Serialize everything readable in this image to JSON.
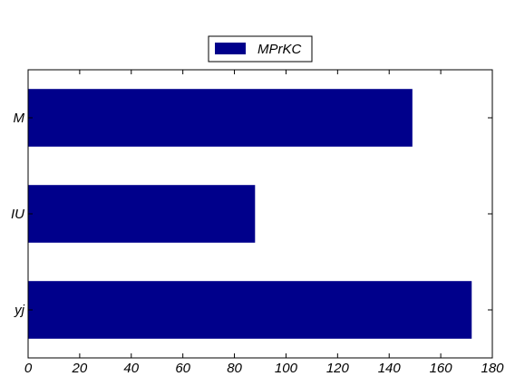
{
  "chart_data": {
    "type": "bar",
    "orientation": "horizontal",
    "categories": [
      "yj",
      "IU",
      "M"
    ],
    "series": [
      {
        "name": "MPrKC",
        "values": [
          172,
          88,
          149
        ]
      }
    ],
    "title": "",
    "xlabel": "",
    "ylabel": "",
    "xlim": [
      0,
      180
    ],
    "xticks": [
      0,
      20,
      40,
      60,
      80,
      100,
      120,
      140,
      160,
      180
    ],
    "grid": false,
    "legend_position": "top-center",
    "bar_color": "#00008b"
  }
}
